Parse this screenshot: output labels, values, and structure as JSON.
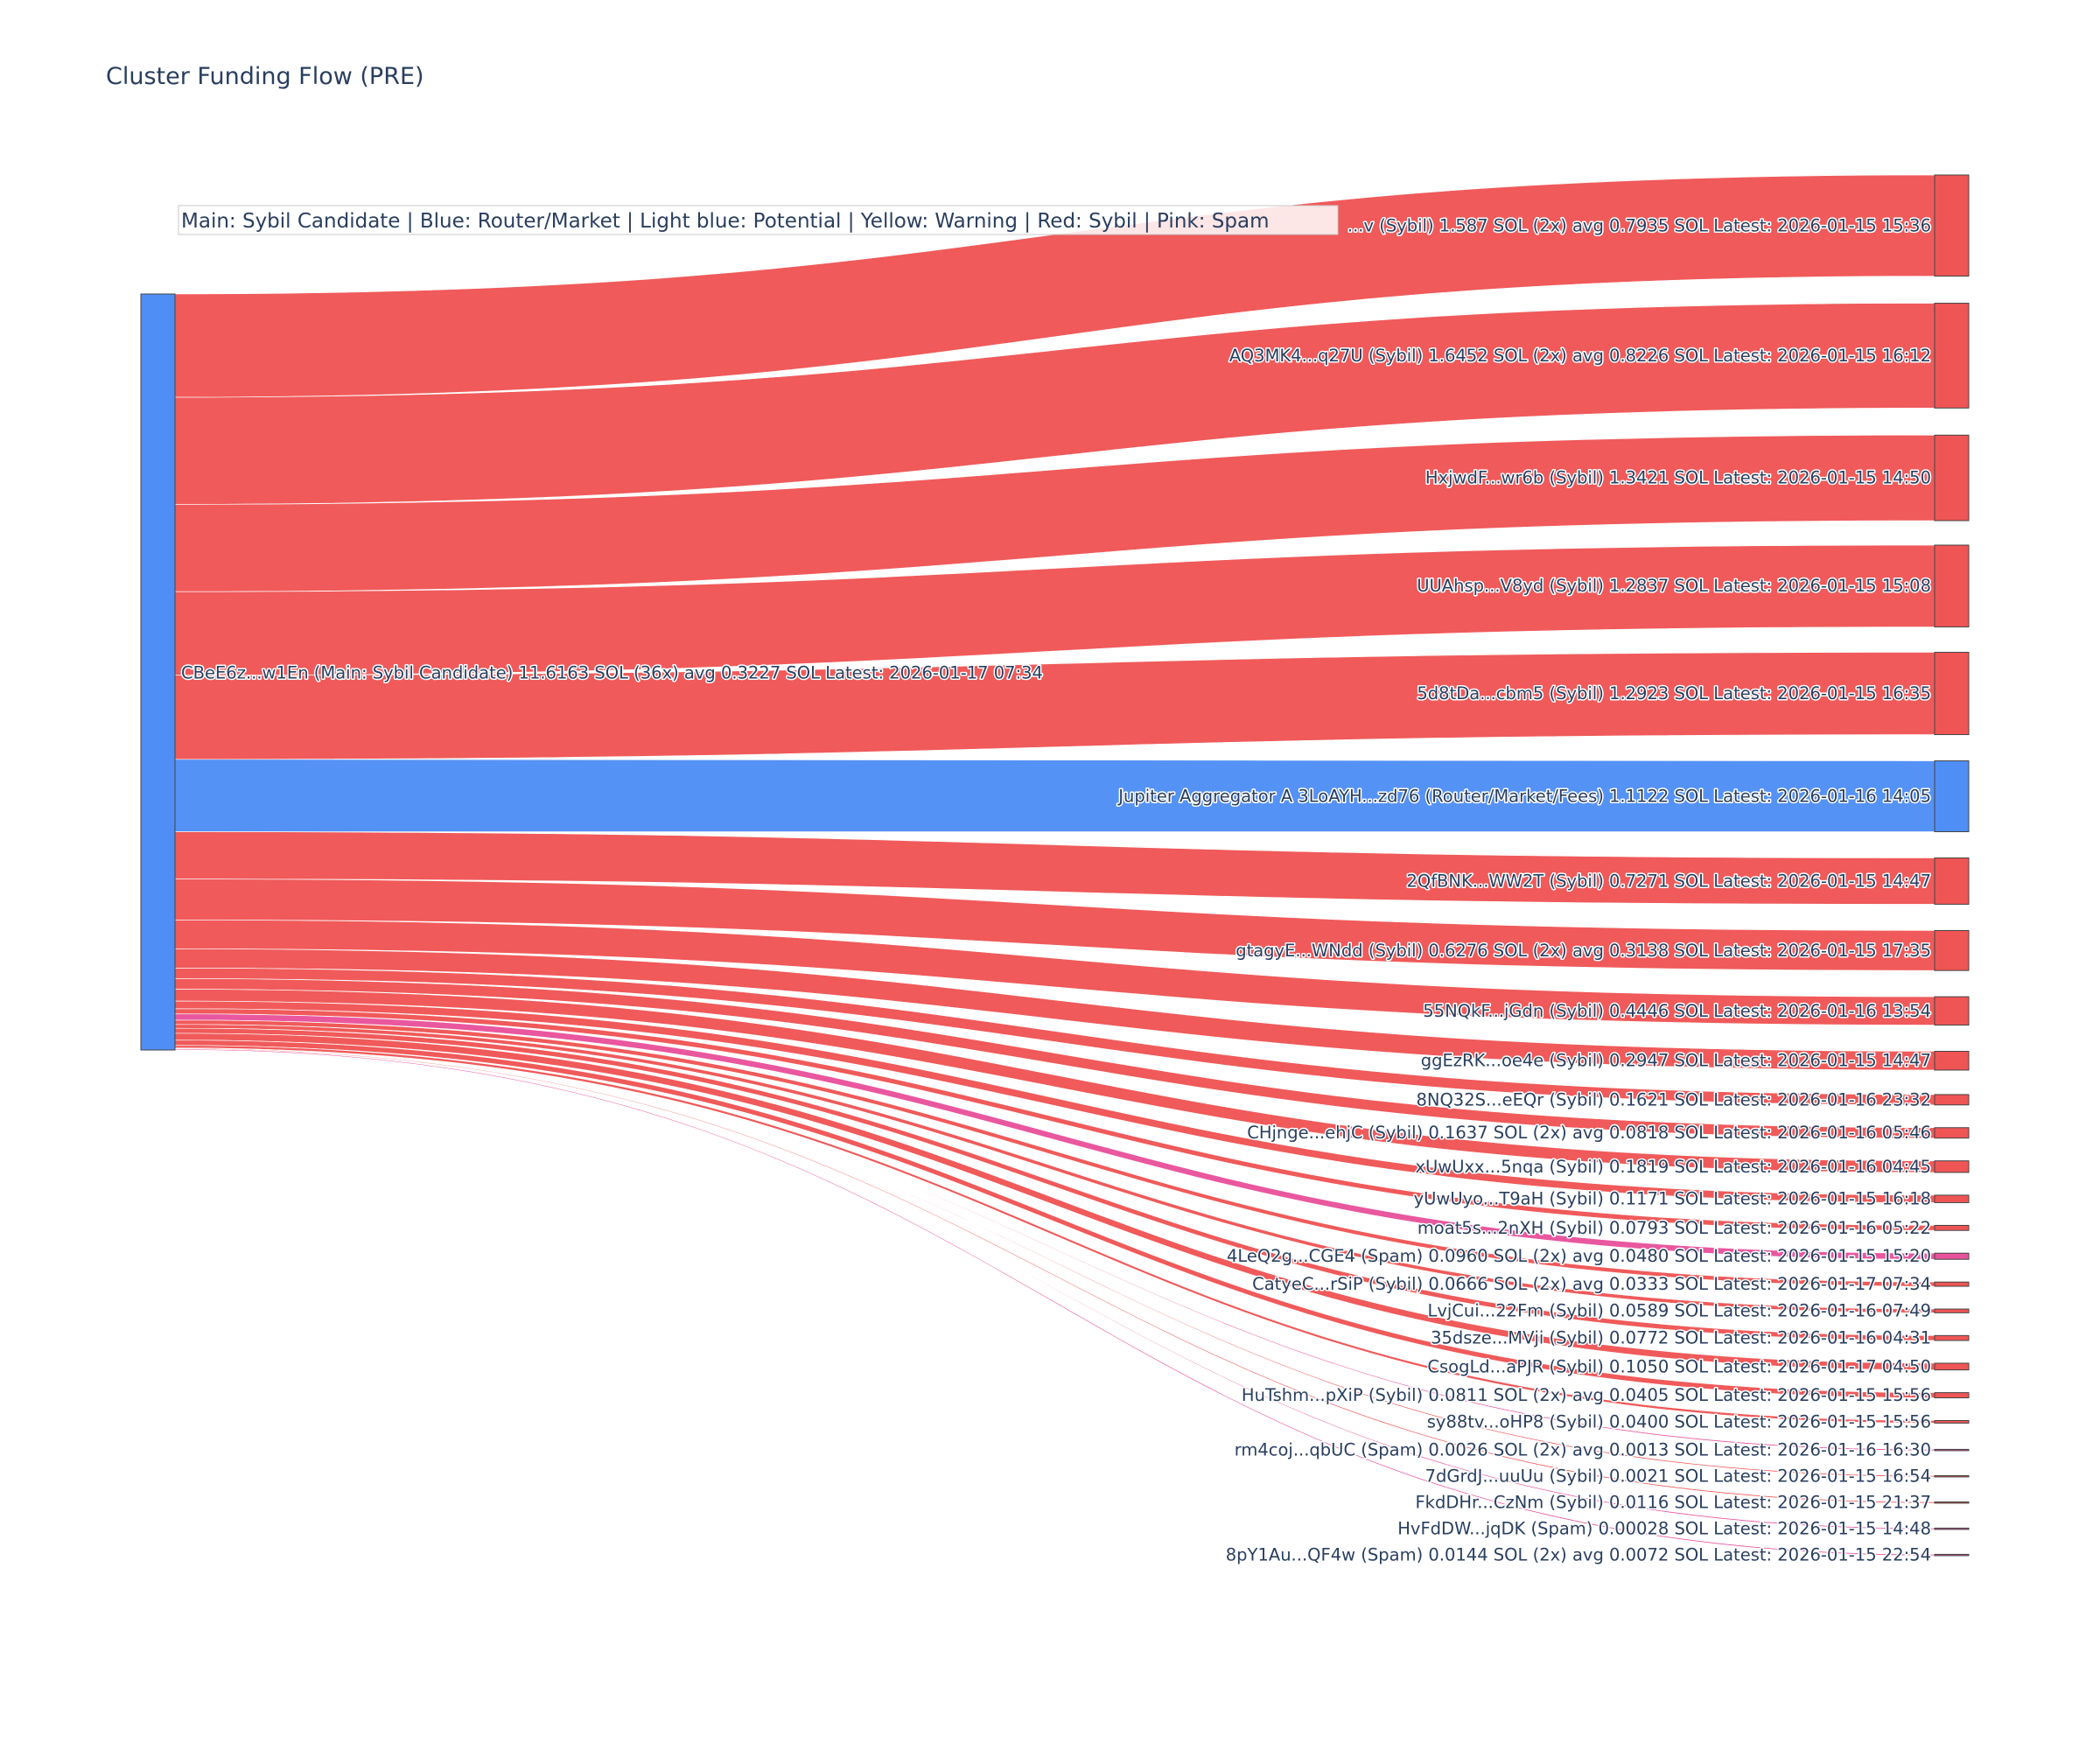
{
  "title": "Cluster Funding Flow (PRE)",
  "legend_note": "Main: Sybil Candidate  |  Blue: Router/Market | Light blue: Potential | Yellow: Warning | Red: Sybil | Pink: Spam",
  "colors": {
    "main": "#4f8ef5",
    "router": "#4f8ef5",
    "sybil": "#ef5555",
    "spam": "#e8529c",
    "node_outline": "#444444"
  },
  "chart_data": {
    "type": "sankey",
    "source": {
      "label": "CBeE6z...w1En (Main: Sybil Candidate) 11.6163 SOL (36x) avg 0.3227 SOL Latest: 2026-01-17 07:34",
      "category": "main"
    },
    "targets": [
      {
        "label": "...v (Sybil) 1.587 SOL (2x) avg 0.7935 SOL Latest: 2026-01-15 15:36",
        "value": 1.587,
        "category": "sybil"
      },
      {
        "label": "AQ3MK4...q27U (Sybil) 1.6452 SOL (2x) avg 0.8226 SOL Latest: 2026-01-15 16:12",
        "value": 1.6452,
        "category": "sybil"
      },
      {
        "label": "HxjwdF...wr6b (Sybil) 1.3421 SOL Latest: 2026-01-15 14:50",
        "value": 1.3421,
        "category": "sybil"
      },
      {
        "label": "UUAhsp...V8yd (Sybil) 1.2837 SOL Latest: 2026-01-15 15:08",
        "value": 1.2837,
        "category": "sybil"
      },
      {
        "label": "5d8tDa...cbm5 (Sybil) 1.2923 SOL Latest: 2026-01-15 16:35",
        "value": 1.2923,
        "category": "sybil"
      },
      {
        "label": "Jupiter Aggregator A 3LoAYH...zd76 (Router/Market/Fees) 1.1122 SOL Latest: 2026-01-16 14:05",
        "value": 1.1122,
        "category": "router"
      },
      {
        "label": "2QfBNK...WW2T (Sybil) 0.7271 SOL Latest: 2026-01-15 14:47",
        "value": 0.7271,
        "category": "sybil"
      },
      {
        "label": "gtagyE...WNdd (Sybil) 0.6276 SOL (2x) avg 0.3138 SOL Latest: 2026-01-15 17:35",
        "value": 0.6276,
        "category": "sybil"
      },
      {
        "label": "55NQkF...jGdn (Sybil) 0.4446 SOL Latest: 2026-01-16 13:54",
        "value": 0.4446,
        "category": "sybil"
      },
      {
        "label": "ggEzRK...oe4e (Sybil) 0.2947 SOL Latest: 2026-01-15 14:47",
        "value": 0.2947,
        "category": "sybil"
      },
      {
        "label": "8NQ32S...eEQr (Sybil) 0.1621 SOL Latest: 2026-01-16 23:32",
        "value": 0.1621,
        "category": "sybil"
      },
      {
        "label": "CHjnge...ehjC (Sybil) 0.1637 SOL (2x) avg 0.0818 SOL Latest: 2026-01-16 05:46",
        "value": 0.1637,
        "category": "sybil"
      },
      {
        "label": "xUwUxx...5nqa (Sybil) 0.1819 SOL Latest: 2026-01-16 04:45",
        "value": 0.1819,
        "category": "sybil"
      },
      {
        "label": "yUwUyo...T9aH (Sybil) 0.1171 SOL Latest: 2026-01-15 16:18",
        "value": 0.1171,
        "category": "sybil"
      },
      {
        "label": "moat5s...2nXH (Sybil) 0.0793 SOL Latest: 2026-01-16 05:22",
        "value": 0.0793,
        "category": "sybil"
      },
      {
        "label": "4LeQ2g...CGE4 (Spam) 0.0960 SOL (2x) avg 0.0480 SOL Latest: 2026-01-15 15:20",
        "value": 0.096,
        "category": "spam"
      },
      {
        "label": "CatyeC...rSiP (Sybil) 0.0666 SOL (2x) avg 0.0333 SOL Latest: 2026-01-17 07:34",
        "value": 0.0666,
        "category": "sybil"
      },
      {
        "label": "LvjCui...22Fm (Sybil) 0.0589 SOL Latest: 2026-01-16 07:49",
        "value": 0.0589,
        "category": "sybil"
      },
      {
        "label": "35dsze...MVji (Sybil) 0.0772 SOL Latest: 2026-01-16 04:31",
        "value": 0.0772,
        "category": "sybil"
      },
      {
        "label": "CsogLd...aPJR (Sybil) 0.1050 SOL Latest: 2026-01-17 04:50",
        "value": 0.105,
        "category": "sybil"
      },
      {
        "label": "HuTshm...pXiP (Sybil) 0.0811 SOL (2x) avg 0.0405 SOL Latest: 2026-01-15 15:56",
        "value": 0.0811,
        "category": "sybil"
      },
      {
        "label": "sy88tv...oHP8 (Sybil) 0.0400 SOL Latest: 2026-01-15 15:56",
        "value": 0.04,
        "category": "sybil"
      },
      {
        "label": "rm4coj...qbUC (Spam) 0.0026 SOL (2x) avg 0.0013 SOL Latest: 2026-01-16 16:30",
        "value": 0.0026,
        "category": "spam"
      },
      {
        "label": "7dGrdJ...uuUu (Sybil) 0.0021 SOL Latest: 2026-01-15 16:54",
        "value": 0.0021,
        "category": "sybil"
      },
      {
        "label": "FkdDHr...CzNm (Sybil) 0.0116 SOL Latest: 2026-01-15 21:37",
        "value": 0.0116,
        "category": "sybil"
      },
      {
        "label": "HvFdDW...jqDK (Spam) 0.00028 SOL Latest: 2026-01-15 14:48",
        "value": 0.00028,
        "category": "spam"
      },
      {
        "label": "8pY1Au...QF4w (Spam) 0.0144 SOL (2x) avg 0.0072 SOL Latest: 2026-01-15 22:54",
        "value": 0.0144,
        "category": "spam"
      }
    ]
  }
}
